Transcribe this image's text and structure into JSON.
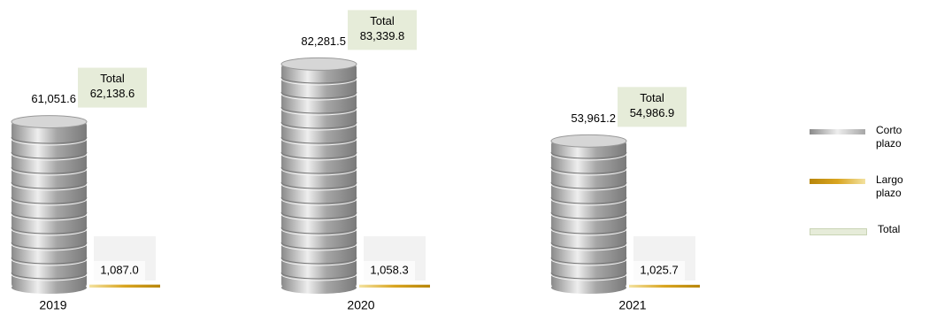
{
  "chart_data": {
    "type": "coin-stack",
    "categories": [
      "2019",
      "2020",
      "2021"
    ],
    "series": [
      {
        "name": "Corto plazo",
        "color": "#a6a6a6",
        "values": [
          61051.6,
          82281.5,
          53961.2
        ],
        "value_labels": [
          "61,051.6",
          "82,281.5",
          "53,961.2"
        ]
      },
      {
        "name": "Largo plazo",
        "color": "#d9a520",
        "values": [
          1087.0,
          1058.3,
          1025.7
        ],
        "value_labels": [
          "1,087.0",
          "1,058.3",
          "1,025.7"
        ]
      },
      {
        "name": "Total",
        "color": "#e6ecd9",
        "values": [
          62138.6,
          83339.8,
          54986.9
        ],
        "value_labels": [
          "62,138.6",
          "83,339.8",
          "54,986.9"
        ]
      }
    ]
  }
}
